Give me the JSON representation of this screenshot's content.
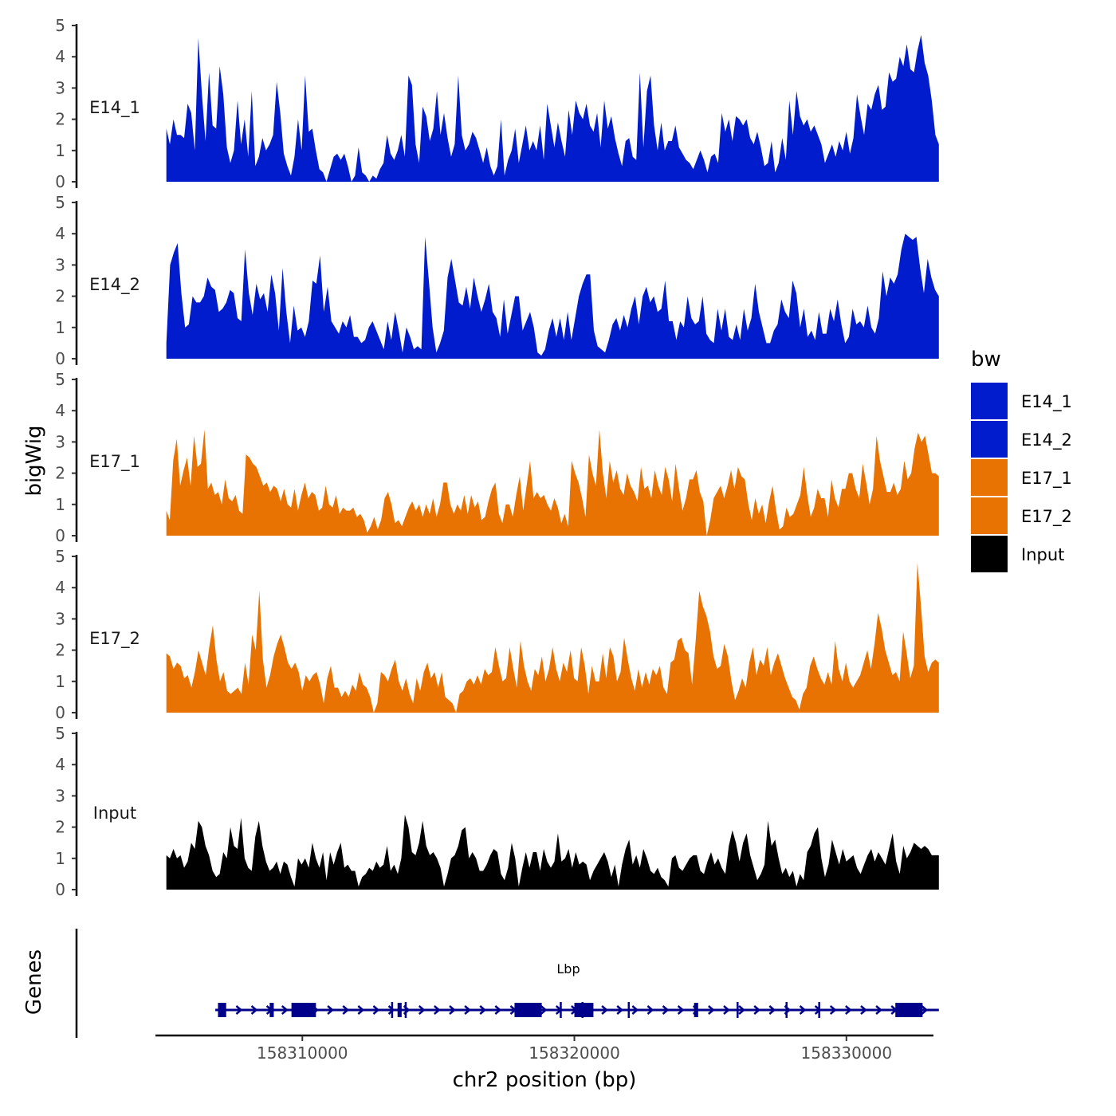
{
  "chart_data": {
    "type": "area",
    "ylabel": "bigWig",
    "xlabel": "chr2 position (bp)",
    "ylim": [
      0,
      5
    ],
    "yticks": [
      "0",
      "1",
      "2",
      "3",
      "4",
      "5"
    ],
    "xlim": [
      158304600,
      158333200
    ],
    "xticks": [
      {
        "value": 158310000,
        "label": "158310000"
      },
      {
        "value": 158320000,
        "label": "158320000"
      },
      {
        "value": 158330000,
        "label": "158330000"
      }
    ],
    "legend": {
      "title": "bw",
      "position": "right",
      "entries": [
        {
          "name": "E14_1",
          "color": "#001ccc"
        },
        {
          "name": "E14_2",
          "color": "#001ccc"
        },
        {
          "name": "E17_1",
          "color": "#e87302"
        },
        {
          "name": "E17_2",
          "color": "#e87302"
        },
        {
          "name": "Input",
          "color": "#000000"
        }
      ]
    },
    "x_start": 158305000,
    "x_end": 158333400,
    "series": [
      {
        "name": "E14_1",
        "color": "#001ccc",
        "values": [
          1.7,
          1.2,
          2.0,
          1.5,
          1.5,
          1.4,
          2.5,
          2.2,
          1.0,
          4.6,
          2.8,
          1.3,
          3.5,
          1.8,
          1.7,
          3.7,
          2.8,
          1.1,
          0.6,
          1.0,
          2.6,
          1.2,
          2.0,
          0.8,
          2.9,
          0.5,
          0.8,
          1.4,
          1.0,
          1.2,
          1.5,
          3.2,
          2.2,
          0.9,
          0.5,
          0.2,
          0.8,
          2.0,
          1.0,
          3.4,
          1.6,
          1.7,
          1.0,
          0.4,
          0.3,
          0.0,
          0.4,
          0.8,
          0.9,
          0.7,
          0.9,
          0.5,
          0.0,
          0.2,
          1.1,
          0.3,
          0.2,
          0.0,
          0.2,
          0.1,
          0.4,
          0.6,
          1.5,
          0.9,
          0.7,
          1.0,
          1.5,
          0.8,
          3.4,
          3.1,
          1.2,
          0.6,
          2.4,
          2.1,
          1.3,
          1.7,
          2.9,
          1.5,
          2.2,
          1.4,
          0.8,
          1.2,
          3.4,
          1.5,
          1.0,
          1.2,
          1.6,
          1.4,
          1.0,
          0.6,
          1.1,
          0.5,
          0.2,
          0.5,
          2.0,
          0.2,
          0.7,
          1.0,
          1.7,
          0.6,
          1.2,
          1.8,
          1.0,
          1.3,
          1.0,
          1.8,
          0.7,
          2.5,
          1.8,
          1.1,
          1.9,
          1.3,
          0.8,
          2.3,
          1.5,
          2.6,
          2.2,
          2.0,
          2.5,
          1.8,
          1.6,
          2.2,
          1.1,
          2.6,
          1.7,
          2.1,
          1.4,
          0.9,
          0.5,
          1.3,
          1.4,
          0.8,
          0.7,
          3.5,
          1.1,
          2.9,
          3.4,
          1.8,
          1.0,
          1.9,
          1.0,
          1.3,
          1.3,
          1.8,
          1.1,
          0.9,
          0.7,
          0.6,
          0.4,
          0.7,
          1.0,
          0.7,
          0.3,
          0.8,
          0.9,
          0.6,
          2.2,
          1.6,
          2.0,
          1.3,
          2.1,
          2.0,
          1.8,
          2.0,
          1.4,
          1.2,
          1.6,
          1.1,
          0.5,
          0.6,
          1.3,
          0.3,
          0.6,
          1.4,
          0.7,
          2.6,
          1.5,
          2.9,
          2.1,
          1.8,
          2.0,
          1.6,
          1.8,
          1.5,
          1.2,
          0.6,
          0.9,
          1.2,
          0.8,
          1.3,
          1.0,
          1.6,
          0.9,
          1.4,
          2.8,
          2.1,
          1.5,
          2.5,
          2.3,
          2.8,
          3.1,
          2.3,
          2.4,
          3.5,
          3.2,
          3.3,
          4.0,
          3.7,
          4.4,
          3.6,
          3.5,
          4.2,
          4.7,
          3.8,
          3.4,
          2.6,
          1.5,
          1.2
        ]
      },
      {
        "name": "E14_2",
        "color": "#001ccc",
        "values": [
          0.5,
          3.0,
          3.4,
          3.7,
          2.1,
          1.0,
          1.1,
          2.0,
          1.8,
          1.8,
          2.0,
          2.6,
          2.3,
          2.2,
          1.5,
          1.6,
          1.8,
          2.2,
          2.1,
          1.3,
          1.2,
          3.5,
          2.1,
          1.4,
          2.4,
          1.9,
          2.1,
          1.5,
          2.7,
          2.1,
          0.9,
          2.9,
          1.5,
          0.5,
          1.7,
          0.9,
          1.0,
          0.7,
          1.2,
          2.5,
          2.4,
          3.3,
          1.5,
          2.3,
          1.2,
          1.0,
          0.8,
          1.2,
          1.0,
          1.4,
          0.7,
          0.7,
          0.5,
          0.6,
          1.0,
          1.2,
          0.9,
          0.6,
          0.3,
          1.2,
          0.6,
          1.5,
          0.9,
          0.2,
          1.0,
          0.7,
          0.3,
          0.4,
          0.3,
          3.9,
          2.5,
          1.0,
          0.2,
          0.5,
          0.9,
          2.6,
          3.2,
          2.5,
          1.8,
          1.7,
          2.3,
          1.6,
          2.6,
          2.0,
          1.5,
          1.9,
          2.4,
          1.5,
          1.3,
          0.7,
          1.9,
          0.8,
          1.4,
          2.0,
          2.0,
          0.9,
          1.2,
          1.5,
          1.0,
          0.2,
          0.1,
          0.3,
          0.9,
          1.3,
          0.7,
          1.3,
          0.6,
          1.5,
          0.6,
          1.3,
          2.0,
          2.4,
          2.7,
          2.7,
          0.9,
          0.4,
          0.3,
          0.2,
          0.6,
          1.1,
          1.3,
          0.9,
          1.4,
          1.0,
          1.6,
          2.0,
          1.1,
          2.0,
          2.3,
          1.8,
          2.0,
          1.5,
          1.6,
          2.5,
          1.2,
          1.2,
          0.6,
          1.2,
          1.0,
          2.0,
          1.3,
          1.1,
          1.2,
          2.0,
          0.8,
          0.6,
          0.5,
          1.6,
          0.9,
          1.6,
          0.7,
          0.6,
          1.1,
          0.6,
          1.6,
          0.9,
          1.3,
          2.4,
          1.5,
          1.0,
          0.5,
          0.5,
          0.9,
          1.1,
          1.9,
          1.5,
          1.3,
          2.5,
          2.1,
          1.0,
          1.6,
          0.7,
          0.9,
          0.6,
          1.5,
          0.8,
          0.8,
          1.6,
          1.2,
          1.9,
          1.1,
          0.5,
          0.7,
          1.6,
          1.1,
          1.2,
          1.0,
          1.7,
          1.0,
          0.8,
          1.3,
          2.8,
          2.0,
          2.6,
          2.4,
          2.7,
          3.5,
          4.0,
          3.9,
          3.8,
          3.9,
          2.9,
          2.1,
          3.2,
          2.6,
          2.2,
          2.0
        ]
      },
      {
        "name": "E17_1",
        "color": "#e87302",
        "values": [
          0.8,
          0.5,
          2.4,
          3.1,
          1.6,
          2.1,
          2.5,
          1.6,
          3.2,
          2.2,
          2.3,
          3.4,
          1.5,
          1.7,
          1.3,
          1.4,
          1.0,
          1.8,
          1.2,
          1.1,
          1.3,
          0.8,
          0.7,
          2.6,
          2.5,
          2.3,
          2.2,
          1.9,
          1.6,
          1.7,
          1.4,
          1.6,
          1.5,
          1.1,
          1.5,
          1.0,
          0.9,
          1.5,
          0.8,
          1.3,
          1.7,
          1.2,
          1.4,
          1.3,
          0.8,
          0.9,
          1.6,
          1.0,
          0.9,
          1.3,
          0.7,
          0.9,
          0.8,
          0.8,
          0.9,
          0.6,
          0.7,
          0.5,
          0.1,
          0.3,
          0.6,
          0.2,
          0.5,
          1.2,
          1.4,
          1.0,
          0.4,
          0.5,
          0.3,
          0.6,
          0.9,
          1.1,
          0.8,
          1.0,
          0.6,
          1.0,
          0.7,
          1.2,
          0.6,
          1.0,
          1.7,
          1.7,
          1.0,
          0.7,
          1.0,
          0.8,
          1.3,
          0.7,
          1.3,
          0.9,
          1.1,
          0.5,
          0.6,
          1.1,
          1.5,
          1.7,
          0.7,
          0.4,
          1.0,
          1.0,
          0.6,
          1.3,
          1.9,
          0.8,
          1.6,
          2.4,
          1.2,
          1.4,
          1.2,
          1.3,
          1.0,
          0.8,
          1.2,
          0.9,
          0.4,
          0.7,
          0.3,
          2.4,
          2.0,
          1.7,
          1.2,
          0.6,
          2.6,
          2.0,
          1.6,
          3.4,
          2.0,
          1.2,
          2.4,
          1.7,
          2.1,
          1.5,
          1.3,
          2.0,
          1.6,
          1.4,
          1.1,
          2.2,
          1.5,
          1.6,
          1.2,
          2.1,
          1.6,
          1.3,
          2.2,
          1.8,
          1.1,
          2.3,
          1.5,
          0.8,
          1.2,
          1.8,
          1.8,
          2.1,
          1.4,
          1.1,
          0.0,
          0.5,
          1.2,
          1.4,
          1.6,
          1.2,
          1.6,
          2.1,
          1.5,
          2.2,
          1.9,
          1.8,
          1.0,
          0.5,
          1.2,
          0.7,
          1.0,
          0.4,
          1.1,
          1.6,
          0.8,
          0.2,
          0.3,
          0.9,
          0.6,
          0.7,
          1.0,
          1.3,
          2.2,
          1.3,
          0.6,
          0.9,
          1.5,
          1.2,
          1.2,
          0.6,
          1.8,
          1.2,
          0.9,
          1.5,
          1.5,
          2.0,
          2.0,
          1.5,
          1.2,
          2.3,
          1.7,
          1.0,
          1.5,
          3.2,
          2.4,
          1.9,
          1.4,
          1.4,
          1.7,
          1.3,
          1.5,
          2.4,
          1.8,
          2.0,
          2.8,
          3.3,
          3.0,
          3.2,
          2.6,
          2.0,
          2.0,
          1.9
        ]
      },
      {
        "name": "E17_2",
        "color": "#e87302",
        "values": [
          1.9,
          1.8,
          1.4,
          1.6,
          1.5,
          1.1,
          1.2,
          0.8,
          1.3,
          2.0,
          1.6,
          1.2,
          2.1,
          2.8,
          1.7,
          1.0,
          1.3,
          0.7,
          0.6,
          0.7,
          0.8,
          0.6,
          1.6,
          0.9,
          2.5,
          2.0,
          3.9,
          1.7,
          0.8,
          1.2,
          1.8,
          2.2,
          2.5,
          2.1,
          1.6,
          1.4,
          1.6,
          1.3,
          0.7,
          1.2,
          1.0,
          1.2,
          1.3,
          0.9,
          0.3,
          1.1,
          1.5,
          0.8,
          0.8,
          0.5,
          0.7,
          0.5,
          0.9,
          0.7,
          1.3,
          0.9,
          0.8,
          0.5,
          0.0,
          0.3,
          1.3,
          1.2,
          1.0,
          1.4,
          1.7,
          1.0,
          0.7,
          1.1,
          0.6,
          0.3,
          1.1,
          0.7,
          1.3,
          1.6,
          1.1,
          1.3,
          0.8,
          1.3,
          0.5,
          0.4,
          0.3,
          0.0,
          0.6,
          0.7,
          1.0,
          1.1,
          0.9,
          1.2,
          0.9,
          1.4,
          1.2,
          1.3,
          2.1,
          1.5,
          1.0,
          1.1,
          2.1,
          1.4,
          0.8,
          2.3,
          1.5,
          1.0,
          0.7,
          1.4,
          1.2,
          1.8,
          1.0,
          1.4,
          2.1,
          1.4,
          1.0,
          1.6,
          1.3,
          2.0,
          1.1,
          1.0,
          2.1,
          1.5,
          0.6,
          1.5,
          1.0,
          1.0,
          1.9,
          1.1,
          2.1,
          1.8,
          1.0,
          1.3,
          2.4,
          1.7,
          1.1,
          0.7,
          1.4,
          0.8,
          1.3,
          0.9,
          1.4,
          1.2,
          1.5,
          0.8,
          0.6,
          1.6,
          1.7,
          2.3,
          2.4,
          2.0,
          1.9,
          0.9,
          2.3,
          3.9,
          3.4,
          3.1,
          2.6,
          1.8,
          1.4,
          1.5,
          2.2,
          1.8,
          1.0,
          0.4,
          0.7,
          1.1,
          0.8,
          1.6,
          2.1,
          1.2,
          1.7,
          1.5,
          2.1,
          1.2,
          1.6,
          1.9,
          1.5,
          1.1,
          0.8,
          0.5,
          0.4,
          0.1,
          0.6,
          0.8,
          1.5,
          1.8,
          1.4,
          1.1,
          0.9,
          1.3,
          0.9,
          2.3,
          1.4,
          1.0,
          1.6,
          1.0,
          0.8,
          1.0,
          1.2,
          1.6,
          2.0,
          1.4,
          2.2,
          3.2,
          2.7,
          2.0,
          1.6,
          1.2,
          1.3,
          1.0,
          2.6,
          1.9,
          1.1,
          1.5,
          4.8,
          3.4,
          1.8,
          1.3,
          1.6,
          1.7,
          1.6
        ]
      },
      {
        "name": "Input",
        "color": "#000000",
        "values": [
          1.1,
          1.0,
          1.3,
          1.0,
          1.1,
          0.7,
          0.9,
          1.5,
          1.3,
          2.2,
          2.0,
          1.4,
          1.1,
          0.6,
          0.4,
          0.5,
          1.2,
          1.0,
          2.0,
          1.4,
          1.3,
          2.3,
          1.0,
          0.7,
          0.6,
          1.7,
          2.2,
          1.4,
          0.9,
          0.6,
          0.7,
          0.9,
          0.5,
          0.9,
          0.8,
          0.4,
          0.1,
          1.0,
          0.8,
          1.0,
          0.7,
          1.5,
          1.0,
          0.7,
          1.2,
          0.3,
          1.2,
          0.8,
          1.2,
          1.5,
          0.7,
          0.8,
          0.6,
          0.6,
          0.1,
          0.4,
          0.5,
          0.7,
          0.6,
          0.9,
          0.7,
          0.8,
          1.4,
          0.6,
          0.8,
          0.5,
          1.0,
          2.4,
          2.0,
          1.2,
          1.1,
          1.5,
          2.2,
          1.4,
          1.1,
          1.2,
          1.0,
          0.7,
          0.1,
          0.5,
          1.0,
          1.1,
          1.4,
          1.9,
          2.0,
          1.0,
          1.2,
          1.0,
          0.6,
          0.6,
          0.8,
          1.1,
          1.3,
          1.2,
          0.5,
          0.3,
          0.7,
          1.5,
          1.0,
          0.1,
          0.7,
          1.2,
          0.7,
          1.2,
          1.2,
          0.6,
          1.3,
          0.9,
          0.7,
          0.9,
          1.8,
          0.9,
          1.0,
          1.3,
          0.7,
          1.2,
          0.8,
          0.9,
          0.8,
          0.3,
          0.6,
          0.8,
          1.0,
          1.2,
          0.9,
          0.4,
          0.8,
          0.1,
          0.8,
          1.3,
          1.6,
          0.8,
          1.1,
          0.7,
          1.3,
          1.0,
          0.6,
          0.5,
          0.7,
          0.4,
          0.3,
          0.1,
          1.0,
          1.1,
          0.7,
          0.6,
          0.8,
          1.0,
          1.1,
          1.1,
          0.6,
          0.5,
          0.9,
          1.2,
          0.8,
          1.0,
          0.7,
          0.5,
          1.4,
          1.9,
          1.5,
          0.9,
          1.5,
          1.8,
          1.1,
          0.7,
          0.3,
          0.5,
          0.8,
          2.2,
          1.4,
          1.6,
          1.0,
          0.5,
          0.7,
          0.4,
          0.6,
          0.1,
          0.5,
          0.3,
          1.2,
          1.4,
          1.8,
          2.0,
          1.0,
          0.4,
          0.8,
          1.6,
          1.2,
          0.8,
          1.3,
          0.9,
          1.0,
          1.1,
          0.7,
          0.5,
          0.8,
          1.1,
          1.3,
          0.9,
          1.2,
          1.0,
          0.8,
          1.3,
          1.8,
          0.9,
          0.5,
          1.4,
          1.0,
          1.2,
          1.5,
          1.4,
          1.3,
          1.4,
          1.3,
          1.1,
          1.1,
          1.1
        ]
      }
    ],
    "genes_track": {
      "label": "Genes",
      "gene_name": "Lbp",
      "color": "#00008b",
      "start": 158306800,
      "end": 158333400,
      "strand": "+",
      "exons": [
        {
          "start": 158306900,
          "end": 158307200
        },
        {
          "start": 158308800,
          "end": 158308950
        },
        {
          "start": 158309600,
          "end": 158310500
        },
        {
          "start": 158313500,
          "end": 158313650
        },
        {
          "start": 158317800,
          "end": 158318800
        },
        {
          "start": 158320000,
          "end": 158320700
        },
        {
          "start": 158324400,
          "end": 158324550
        },
        {
          "start": 158331800,
          "end": 158332800
        }
      ],
      "markers": [
        158313300,
        158313800,
        158319500,
        158320300,
        158322000,
        158326000,
        158327800,
        158329000
      ]
    }
  }
}
